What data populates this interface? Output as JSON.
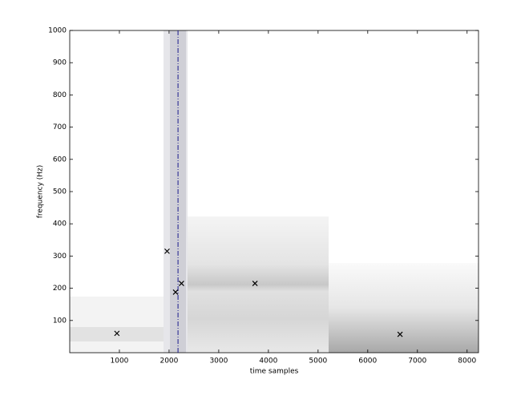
{
  "chart_data": {
    "type": "scatter",
    "x_label": "time samples",
    "y_label": "frequency (Hz)",
    "x": [
      950,
      1960,
      2130,
      2250,
      3730,
      6650
    ],
    "values": [
      60,
      315,
      188,
      215,
      215,
      57
    ],
    "color": "#000000",
    "vline_x": 2180,
    "vline_color": "#1a1a8c",
    "xlim": [
      0,
      8230
    ],
    "ylim": [
      0,
      1000
    ],
    "xticks": [
      1000,
      2000,
      3000,
      4000,
      5000,
      6000,
      7000,
      8000
    ],
    "yticks": [
      100,
      200,
      300,
      400,
      500,
      600,
      700,
      800,
      900,
      1000
    ]
  }
}
